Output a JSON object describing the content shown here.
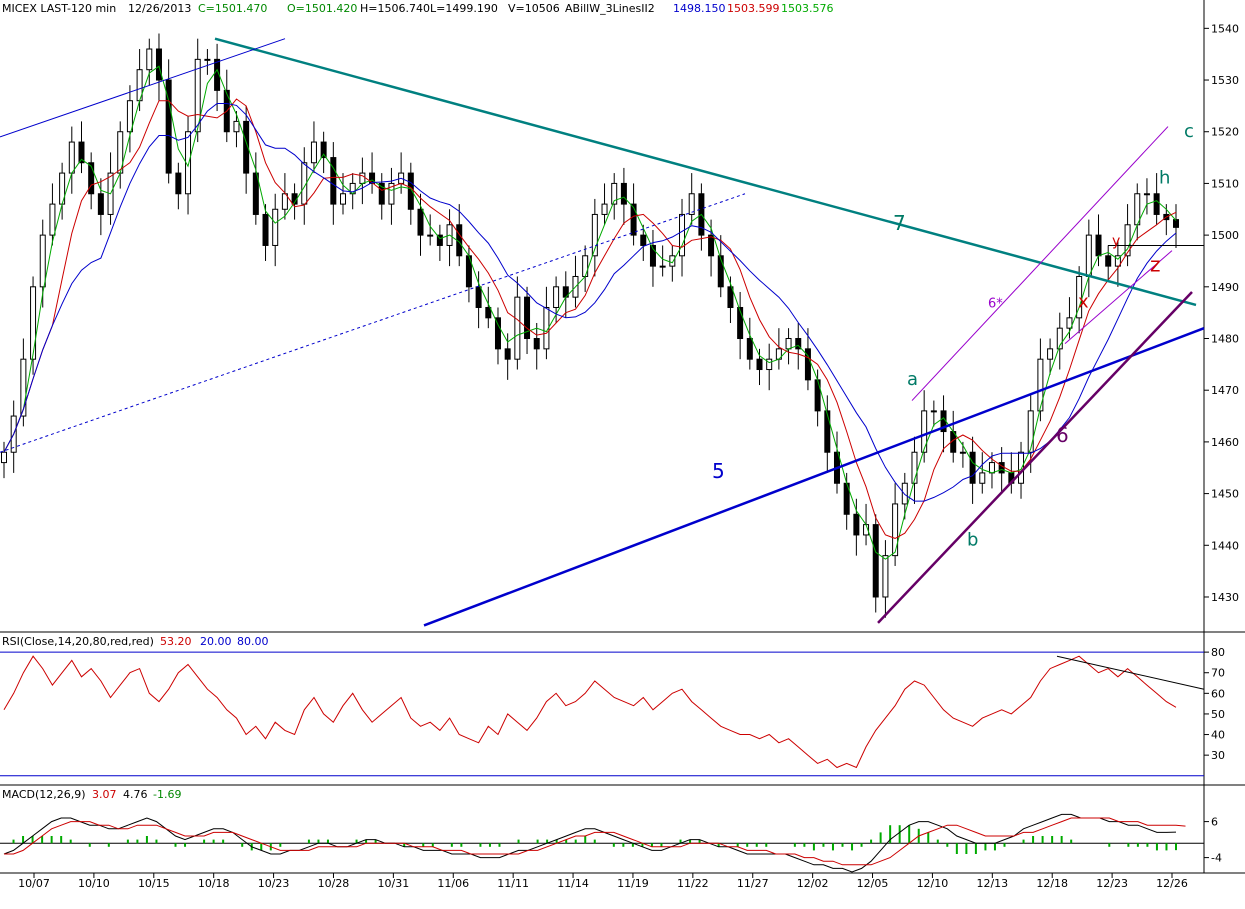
{
  "chart_data": {
    "type": "candlestick",
    "title": "",
    "main_header": {
      "symbol": "MICEX LAST-120 min",
      "date": "12/26/2013",
      "close": "C=1501.470",
      "open": "O=1501.420",
      "high": "H=1506.740",
      "low": "L=1499.190",
      "volume": "V=10506",
      "indicator": "ABillW_3LinesII2",
      "ind_v1": "1498.150",
      "ind_v2": "1503.599",
      "ind_v3": "1503.576"
    },
    "price_axis": {
      "ylim": [
        1424,
        1542
      ],
      "ticks": [
        1430,
        1440,
        1450,
        1460,
        1470,
        1480,
        1490,
        1500,
        1510,
        1520,
        1530,
        1540
      ]
    },
    "x_labels": [
      "10/07",
      "10/10",
      "10/15",
      "10/18",
      "10/23",
      "10/28",
      "10/31",
      "11/06",
      "11/11",
      "11/14",
      "11/19",
      "11/22",
      "11/27",
      "12/02",
      "12/05",
      "12/10",
      "12/13",
      "12/18",
      "12/23",
      "12/26"
    ],
    "close_series": [
      1458,
      1465,
      1476,
      1490,
      1500,
      1506,
      1512,
      1518,
      1514,
      1508,
      1504,
      1512,
      1520,
      1526,
      1532,
      1536,
      1530,
      1512,
      1508,
      1520,
      1534,
      1534,
      1528,
      1520,
      1522,
      1512,
      1504,
      1498,
      1505,
      1508,
      1506,
      1514,
      1518,
      1515,
      1506,
      1508,
      1510,
      1512,
      1510,
      1506,
      1510,
      1512,
      1505,
      1500,
      1500,
      1498,
      1502,
      1496,
      1490,
      1486,
      1484,
      1478,
      1476,
      1488,
      1480,
      1478,
      1486,
      1490,
      1488,
      1492,
      1496,
      1504,
      1506,
      1510,
      1506,
      1500,
      1498,
      1494,
      1494,
      1496,
      1504,
      1508,
      1500,
      1496,
      1490,
      1486,
      1480,
      1476,
      1474,
      1476,
      1478,
      1480,
      1478,
      1472,
      1466,
      1458,
      1452,
      1446,
      1442,
      1444,
      1430,
      1438,
      1448,
      1452,
      1458,
      1466,
      1466,
      1462,
      1458,
      1458,
      1452,
      1454,
      1456,
      1454,
      1452,
      1458,
      1466,
      1476,
      1478,
      1482,
      1484,
      1492,
      1500,
      1496,
      1494,
      1496,
      1502,
      1508,
      1508,
      1504,
      1503,
      1501.5
    ],
    "candles_sample_count": 122,
    "rsi": {
      "label": "RSI(Close,14,20,80,red,red)",
      "value": "53.20",
      "lower": "20.00",
      "upper": "80.00",
      "ylim": [
        16,
        82
      ],
      "ticks": [
        30,
        40,
        50,
        60,
        70,
        80
      ],
      "values": [
        52,
        60,
        70,
        78,
        72,
        64,
        70,
        76,
        68,
        72,
        66,
        58,
        64,
        70,
        72,
        60,
        56,
        62,
        70,
        74,
        68,
        62,
        58,
        52,
        48,
        40,
        44,
        38,
        46,
        42,
        40,
        52,
        58,
        50,
        46,
        54,
        60,
        52,
        46,
        50,
        54,
        58,
        48,
        44,
        46,
        42,
        48,
        40,
        38,
        36,
        44,
        40,
        50,
        46,
        42,
        48,
        56,
        60,
        54,
        56,
        60,
        66,
        62,
        58,
        56,
        54,
        58,
        52,
        56,
        60,
        62,
        56,
        52,
        48,
        44,
        42,
        40,
        40,
        38,
        40,
        36,
        38,
        34,
        30,
        26,
        28,
        24,
        26,
        24,
        34,
        42,
        48,
        54,
        62,
        66,
        64,
        58,
        52,
        48,
        46,
        44,
        48,
        50,
        52,
        50,
        54,
        58,
        66,
        72,
        74,
        76,
        78,
        74,
        70,
        72,
        68,
        72,
        68,
        64,
        60,
        56,
        53.2
      ]
    },
    "macd": {
      "label": "MACD(12,26,9)",
      "v1": "3.07",
      "v2": "4.76",
      "v3": "-1.69",
      "ylim": [
        -8,
        12
      ],
      "ticks": [
        -4,
        6
      ],
      "values": [
        -3,
        -2,
        0,
        2,
        4,
        6,
        7,
        7,
        6,
        5,
        5,
        4,
        4,
        5,
        6,
        7,
        6,
        4,
        2,
        1,
        2,
        3,
        4,
        4,
        3,
        1,
        -1,
        -2,
        -3,
        -3,
        -2,
        -2,
        -1,
        0,
        0,
        -1,
        -1,
        0,
        1,
        1,
        0,
        0,
        -1,
        -1,
        -2,
        -2,
        -2,
        -3,
        -3,
        -3,
        -4,
        -4,
        -4,
        -3,
        -2,
        -2,
        -1,
        0,
        1,
        2,
        3,
        4,
        4,
        3,
        2,
        1,
        0,
        -1,
        -2,
        -2,
        -1,
        0,
        1,
        1,
        0,
        -1,
        -1,
        -2,
        -3,
        -3,
        -3,
        -3,
        -3,
        -4,
        -5,
        -6,
        -6,
        -7,
        -7,
        -8,
        -7,
        -5,
        -2,
        1,
        3,
        5,
        6,
        6,
        5,
        4,
        2,
        1,
        0,
        0,
        0,
        1,
        2,
        4,
        5,
        6,
        7,
        8,
        8,
        7,
        7,
        7,
        6,
        6,
        5,
        5,
        4,
        3,
        3,
        3.07
      ],
      "signal": [
        -3,
        -3,
        -2,
        0,
        2,
        4,
        5,
        6,
        6,
        6,
        5,
        5,
        4,
        4,
        5,
        5,
        5,
        4,
        3,
        2,
        2,
        2,
        3,
        3,
        3,
        2,
        1,
        0,
        -1,
        -2,
        -2,
        -2,
        -2,
        -1,
        -1,
        -1,
        -1,
        -1,
        0,
        0,
        0,
        0,
        0,
        -1,
        -1,
        -1,
        -2,
        -2,
        -2,
        -3,
        -3,
        -3,
        -3,
        -3,
        -3,
        -2,
        -2,
        -1,
        0,
        1,
        2,
        2,
        3,
        3,
        3,
        2,
        1,
        0,
        -1,
        -1,
        -1,
        -1,
        0,
        0,
        0,
        0,
        -1,
        -1,
        -2,
        -2,
        -2,
        -3,
        -3,
        -3,
        -4,
        -4,
        -5,
        -5,
        -6,
        -6,
        -6,
        -6,
        -5,
        -4,
        -2,
        0,
        2,
        3,
        4,
        5,
        5,
        4,
        3,
        2,
        2,
        2,
        2,
        3,
        3,
        4,
        5,
        6,
        7,
        7,
        7,
        7,
        7,
        6,
        6,
        6,
        5,
        5,
        5,
        5,
        4.76
      ]
    },
    "annotations": [
      {
        "text": "7",
        "color": "#007a66"
      },
      {
        "text": "5",
        "color": "#0000cc"
      },
      {
        "text": "6",
        "color": "#660066"
      },
      {
        "text": "6*",
        "color": "#9900cc"
      },
      {
        "text": "a",
        "color": "#007a66"
      },
      {
        "text": "b",
        "color": "#007a66"
      },
      {
        "text": "c",
        "color": "#007a66"
      },
      {
        "text": "h",
        "color": "#007a66"
      },
      {
        "text": "x",
        "color": "#cc0000"
      },
      {
        "text": "y",
        "color": "#cc0000"
      },
      {
        "text": "z",
        "color": "#cc0000"
      }
    ],
    "colors": {
      "blue_ma": "#0000cc",
      "red_ma": "#cc0000",
      "green_ma": "#00aa00",
      "trend7": "#008080",
      "trend5": "#0000cc",
      "trend6": "#660066",
      "rsi": "#cc0000",
      "macd": "#000000",
      "signal": "#cc0000",
      "hist": "#00aa00"
    }
  }
}
